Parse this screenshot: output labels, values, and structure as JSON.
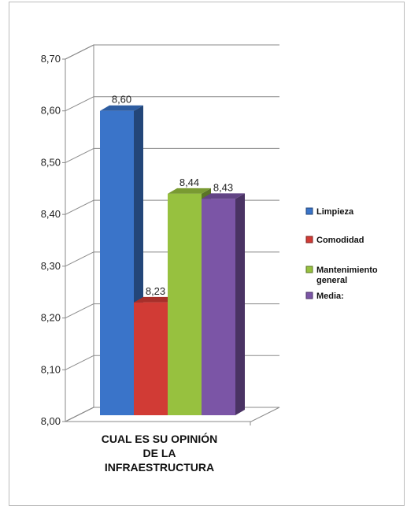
{
  "chart_data": {
    "type": "bar",
    "style": "3d-column",
    "category": "CUAL ES SU OPINIÓN DE LA INFRAESTRUCTURA",
    "category_lines": [
      "CUAL ES SU OPINIÓN",
      "DE LA",
      "INFRAESTRUCTURA"
    ],
    "series": [
      {
        "name": "Limpieza",
        "value": 8.6,
        "label": "8,60",
        "color": "#3a74c9"
      },
      {
        "name": "Comodidad",
        "value": 8.23,
        "label": "8,23",
        "color": "#d13b35"
      },
      {
        "name": "Mantenimiento general",
        "legend_lines": [
          "Mantenimiento",
          "general"
        ],
        "value": 8.44,
        "label": "8,44",
        "color": "#97c13f"
      },
      {
        "name": "Media:",
        "value": 8.43,
        "label": "8,43",
        "color": "#7b55a6"
      }
    ],
    "ylim": [
      8.0,
      8.7
    ],
    "yticks": [
      8.0,
      8.1,
      8.2,
      8.3,
      8.4,
      8.5,
      8.6,
      8.7
    ],
    "ytick_labels": [
      "8,00",
      "8,10",
      "8,20",
      "8,30",
      "8,40",
      "8,50",
      "8,60",
      "8,70"
    ],
    "grid": true,
    "legend_position": "right"
  }
}
